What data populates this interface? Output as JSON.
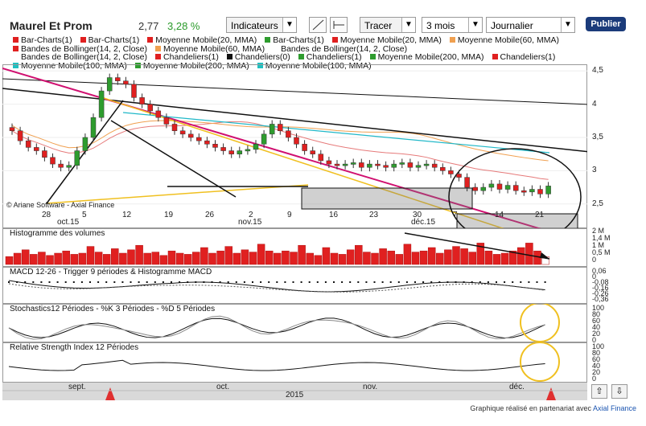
{
  "header": {
    "title": "Maurel Et Prom",
    "price": "2,77",
    "change": "3,28 %",
    "indicators_label": "Indicateurs",
    "tracer_label": "Tracer",
    "period_value": "3 mois",
    "interval_value": "Journalier",
    "publish_label": "Publier"
  },
  "legend": {
    "row1": [
      {
        "label": "Bar-Charts(1)",
        "color": "#e02020"
      },
      {
        "label": "Bar-Charts(1)",
        "color": "#e02020"
      },
      {
        "label": "Moyenne Mobile(20, MMA)",
        "color": "#e02020"
      },
      {
        "label": "Bar-Charts(1)",
        "color": "#2e9c2e"
      },
      {
        "label": "Moyenne Mobile(20, MMA)",
        "color": "#e02020"
      },
      {
        "label": "Moyenne Mobile(60, MMA)",
        "color": "#f0a050"
      }
    ],
    "row2": [
      {
        "label": "Bandes de Bollinger(14, 2, Close)",
        "color": "#e02020"
      },
      {
        "label": "Moyenne Mobile(60, MMA)",
        "color": "#f0a050"
      },
      {
        "label": "Bandes de Bollinger(14, 2, Close)",
        "color": "#ffffff"
      }
    ],
    "row3": [
      {
        "label": "Bandes de Bollinger(14, 2, Close)",
        "color": "#ffffff"
      },
      {
        "label": "Chandeliers(1)",
        "color": "#e02020"
      },
      {
        "label": "Chandeliers(0)",
        "color": "#111111"
      },
      {
        "label": "Chandeliers(1)",
        "color": "#2e9c2e"
      },
      {
        "label": "Moyenne Mobile(200, MMA)",
        "color": "#2e9c2e"
      },
      {
        "label": "Chandeliers(1)",
        "color": "#e02020"
      }
    ],
    "row4": [
      {
        "label": "Moyenne Mobile(100, MMA)",
        "color": "#20c0c0"
      },
      {
        "label": "Moyenne Mobile(200, MMA)",
        "color": "#2e9c2e"
      },
      {
        "label": "Moyenne Mobile(100, MMA)",
        "color": "#20c0c0"
      }
    ]
  },
  "price_panel": {
    "copyright": "© Ariane Software - Axial Finance",
    "y_ticks": [
      "4,5",
      "4",
      "3,5",
      "3",
      "2,5"
    ],
    "x_ticks": [
      "28",
      "5",
      "12",
      "19",
      "26",
      "2",
      "9",
      "16",
      "23",
      "30",
      "7",
      "14",
      "21"
    ],
    "month_labels": [
      "oct.15",
      "nov.15",
      "déc.15"
    ]
  },
  "volume_panel": {
    "title": "Histogramme des volumes",
    "y_ticks": [
      "2 M",
      "1,4 M",
      "1 M",
      "0,5 M",
      "0"
    ],
    "values": [
      0.35,
      0.5,
      0.65,
      0.45,
      0.55,
      0.4,
      0.5,
      0.6,
      0.45,
      0.5,
      0.8,
      0.55,
      0.45,
      0.7,
      0.5,
      0.65,
      0.85,
      0.5,
      0.55,
      0.4,
      0.6,
      0.5,
      0.45,
      0.55,
      0.75,
      0.5,
      0.6,
      0.8,
      0.5,
      0.65,
      0.55,
      0.9,
      0.6,
      0.5,
      0.6,
      0.55,
      0.85,
      0.5,
      0.4,
      0.75,
      0.5,
      0.45,
      0.65,
      0.85,
      0.55,
      0.5,
      0.7,
      0.6,
      0.45,
      0.9,
      0.55,
      0.6,
      0.75,
      0.5,
      0.65,
      0.8,
      0.7,
      0.55,
      0.95,
      0.6,
      0.45,
      0.5,
      0.6,
      0.75,
      0.95,
      0.6,
      0.35
    ]
  },
  "macd_panel": {
    "title": "MACD 12-26 - Trigger 9 périodes & Histogramme MACD",
    "y_ticks": [
      "0,06",
      "0",
      "-0,08",
      "-0,16",
      "-0,26",
      "-0,36"
    ]
  },
  "stoch_panel": {
    "title": "Stochastics12 Périodes - %K 3 Périodes - %D 5 Périodes",
    "y_ticks": [
      "100",
      "80",
      "60",
      "40",
      "20",
      "0"
    ]
  },
  "rsi_panel": {
    "title": "Relative Strength Index 12 Périodes",
    "y_ticks": [
      "100",
      "80",
      "60",
      "40",
      "20",
      "0"
    ]
  },
  "timeline": {
    "labels": [
      "sept.",
      "oct.",
      "nov.",
      "déc."
    ],
    "year": "2015"
  },
  "footer": {
    "text": "Graphique réalisé en partenariat avec",
    "link": "Axial Finance"
  },
  "chart_data": {
    "type": "candlestick",
    "y_range": [
      2.4,
      4.6
    ],
    "closes": [
      3.6,
      3.45,
      3.35,
      3.3,
      3.2,
      3.1,
      3.05,
      3.08,
      3.3,
      3.5,
      3.8,
      4.2,
      4.4,
      4.35,
      4.3,
      4.1,
      4.0,
      3.9,
      3.8,
      3.7,
      3.6,
      3.55,
      3.5,
      3.45,
      3.4,
      3.35,
      3.3,
      3.25,
      3.3,
      3.32,
      3.4,
      3.55,
      3.7,
      3.6,
      3.5,
      3.4,
      3.3,
      3.25,
      3.15,
      3.1,
      3.08,
      3.1,
      3.12,
      3.05,
      3.1,
      3.08,
      3.05,
      3.1,
      3.12,
      3.05,
      3.08,
      3.1,
      3.05,
      3.0,
      2.95,
      2.9,
      2.75,
      2.7,
      2.75,
      2.8,
      2.72,
      2.78,
      2.7,
      2.68,
      2.72,
      2.65,
      2.77
    ]
  }
}
